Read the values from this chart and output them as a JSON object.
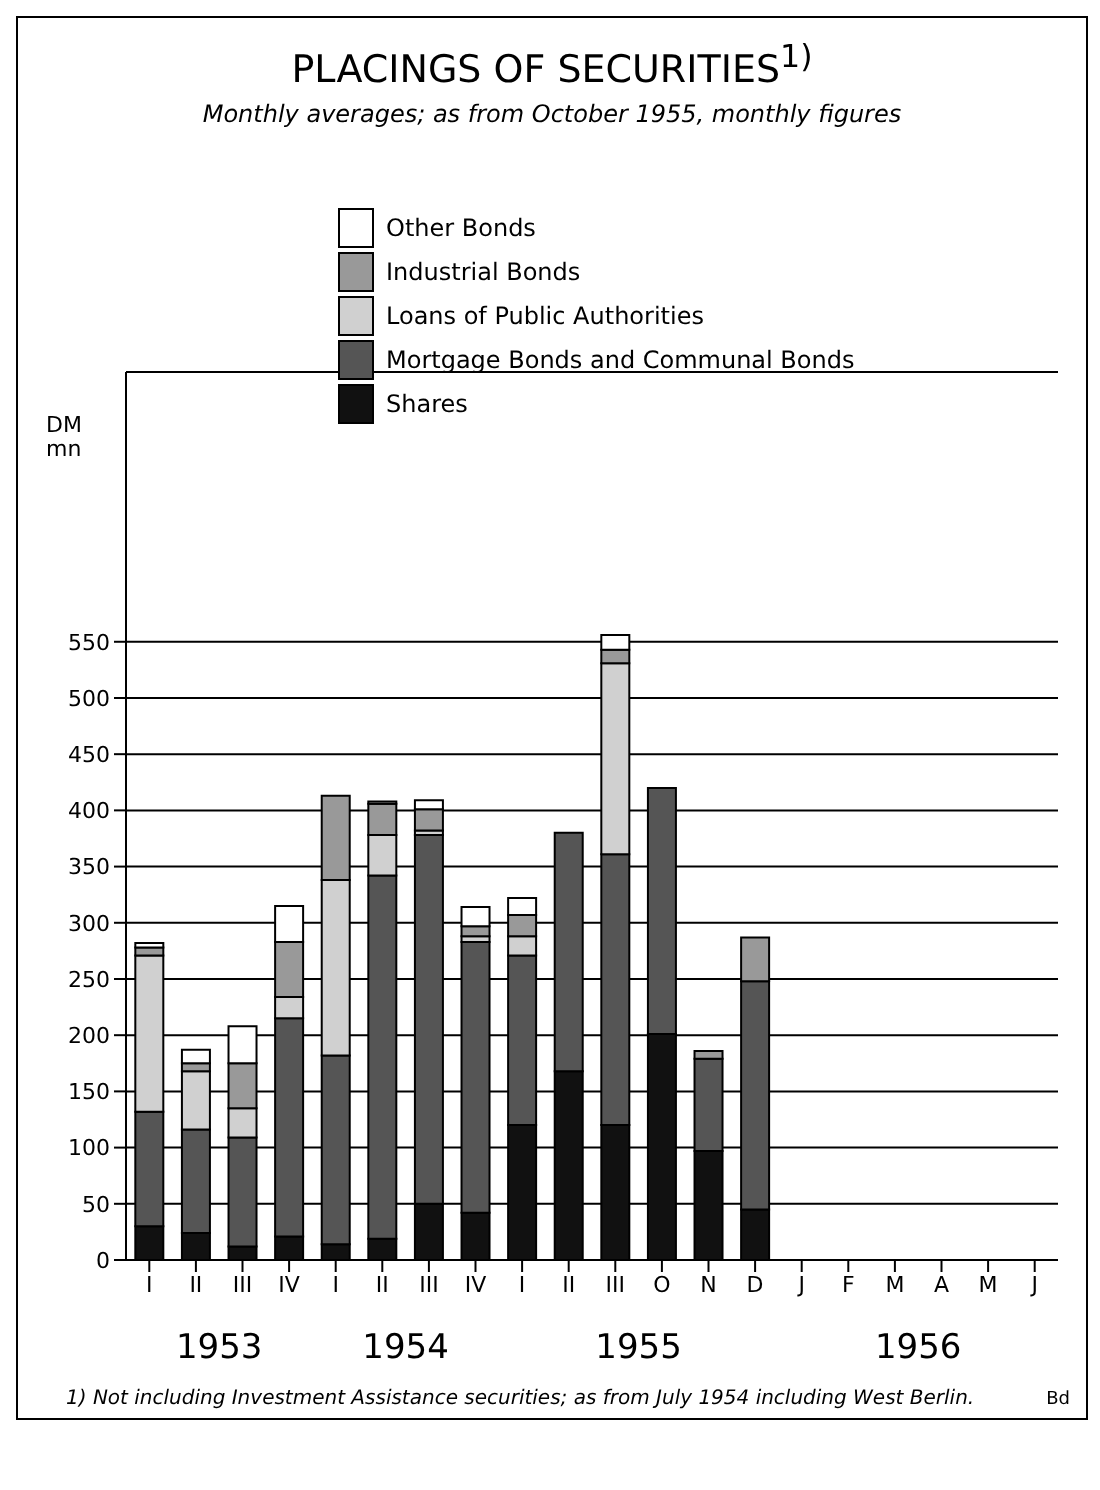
{
  "chart_data": {
    "type": "bar",
    "title": "PLACINGS OF SECURITIES$^{1)}$",
    "subtitle": "Monthly averages; as from October 1955, monthly figures",
    "ylabel": "DM mn",
    "categories": [
      "I",
      "II",
      "III",
      "IV",
      "I",
      "II",
      "III",
      "IV",
      "I",
      "II",
      "III",
      "O",
      "N",
      "D",
      "J",
      "F",
      "M",
      "A",
      "M",
      "J"
    ],
    "stacked": true,
    "legend": "top",
    "grid": "y",
    "ylim": [
      0,
      790
    ],
    "yticks": [
      0,
      50,
      100,
      150,
      200,
      250,
      300,
      350,
      400,
      450,
      500,
      550
    ],
    "series": [
      {
        "name": "Shares",
        "color": "#111111",
        "values": [
          30,
          24,
          12,
          21,
          14,
          19,
          50,
          42,
          120,
          168,
          120,
          201,
          97,
          45,
          null,
          null,
          null,
          null,
          null,
          null
        ]
      },
      {
        "name": "Mortgage Bonds and Communal Bonds",
        "color": "#555555",
        "values": [
          102,
          92,
          97,
          194,
          168,
          323,
          328,
          241,
          151,
          212,
          241,
          219,
          82,
          203,
          null,
          null,
          null,
          null,
          null,
          null
        ]
      },
      {
        "name": "Loans of Public Authorities",
        "color": "#d0d0d0",
        "values": [
          139,
          52,
          26,
          19,
          156,
          36,
          4,
          5,
          17,
          0,
          170,
          0,
          0,
          0,
          null,
          null,
          null,
          null,
          null,
          null
        ]
      },
      {
        "name": "Industrial Bonds",
        "color": "#999999",
        "values": [
          7,
          7,
          40,
          49,
          75,
          28,
          19,
          9,
          19,
          0,
          12,
          0,
          7,
          39,
          null,
          null,
          null,
          null,
          null,
          null
        ]
      },
      {
        "name": "Other Bonds",
        "color": "#ffffff",
        "values": [
          4,
          12,
          33,
          32,
          0,
          2,
          8,
          17,
          15,
          0,
          13,
          0,
          0,
          0,
          null,
          null,
          null,
          null,
          null,
          null
        ]
      }
    ],
    "annotations": [
      "1953",
      "1954",
      "1955",
      "1956",
      "1) Not including Investment Assistance securities; as from July 1954 including West Berlin.",
      "Bd"
    ]
  }
}
